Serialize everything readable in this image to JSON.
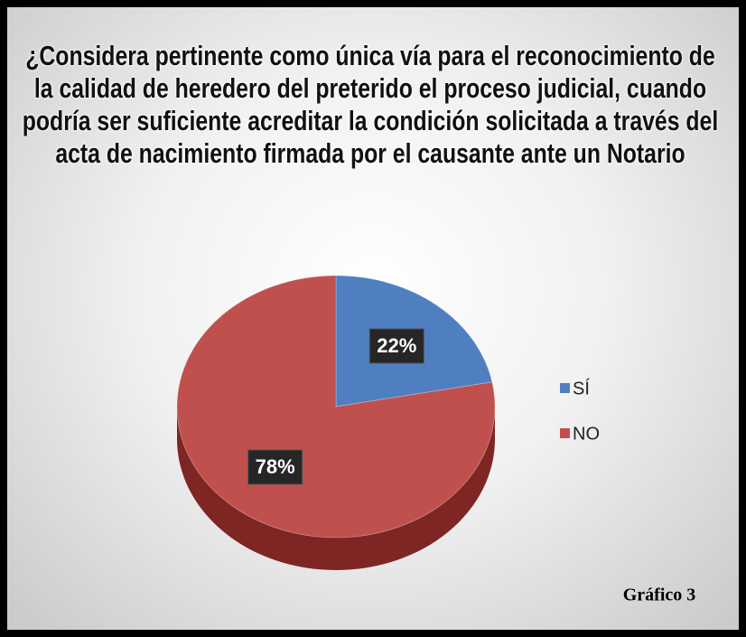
{
  "chart_data": {
    "type": "pie",
    "title": "¿Considera pertinente como única vía para el reconocimiento de la calidad de heredero del preterido el proceso judicial, cuando podría ser suficiente acreditar la condición solicitada a través del acta de nacimiento firmada por el causante ante un Notario",
    "categories": [
      "SÍ",
      "NO"
    ],
    "values": [
      22,
      78
    ],
    "value_labels": [
      "22%",
      "78%"
    ],
    "colors": [
      "#4f7fc0",
      "#c0504d"
    ],
    "legend": "right",
    "annotation": "Gráfico 3"
  }
}
